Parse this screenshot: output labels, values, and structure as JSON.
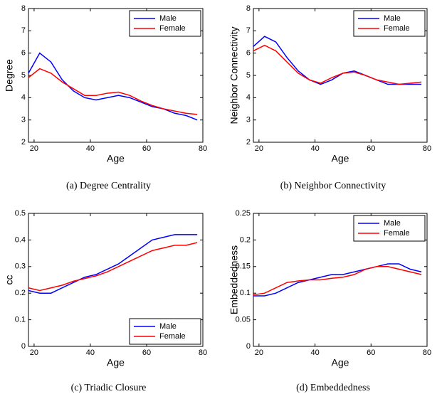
{
  "chart_data": [
    {
      "type": "line",
      "ylabel": "Degree",
      "xlabel": "Age",
      "caption": "(a)  Degree Centrality",
      "legend": "northeast",
      "x": [
        18,
        22,
        26,
        30,
        34,
        38,
        42,
        46,
        50,
        54,
        58,
        62,
        66,
        70,
        74,
        78
      ],
      "xlim": [
        18,
        80
      ],
      "xticks": [
        20,
        40,
        60,
        80
      ],
      "ylim": [
        2,
        8
      ],
      "yticks": [
        2,
        3,
        4,
        5,
        6,
        7,
        8
      ],
      "series": [
        {
          "name": "Male",
          "color": "#0000ff",
          "values": [
            5.1,
            6.0,
            5.6,
            4.8,
            4.3,
            4.0,
            3.9,
            4.0,
            4.1,
            4.0,
            3.8,
            3.6,
            3.5,
            3.3,
            3.2,
            3.0
          ]
        },
        {
          "name": "Female",
          "color": "#ff0000",
          "values": [
            4.9,
            5.3,
            5.1,
            4.7,
            4.4,
            4.1,
            4.1,
            4.2,
            4.25,
            4.1,
            3.85,
            3.65,
            3.5,
            3.4,
            3.3,
            3.25
          ]
        }
      ]
    },
    {
      "type": "line",
      "ylabel": "Neighbor Connectivity",
      "xlabel": "Age",
      "caption": "(b)  Neighbor Connectivity",
      "legend": "northeast",
      "x": [
        18,
        22,
        26,
        30,
        34,
        38,
        42,
        46,
        50,
        54,
        58,
        62,
        66,
        70,
        74,
        78
      ],
      "xlim": [
        18,
        80
      ],
      "xticks": [
        20,
        40,
        60,
        80
      ],
      "ylim": [
        2,
        8
      ],
      "yticks": [
        2,
        3,
        4,
        5,
        6,
        7,
        8
      ],
      "series": [
        {
          "name": "Male",
          "color": "#0000ff",
          "values": [
            6.3,
            6.75,
            6.5,
            5.8,
            5.2,
            4.8,
            4.6,
            4.8,
            5.1,
            5.2,
            5.0,
            4.8,
            4.6,
            4.6,
            4.6,
            4.6
          ]
        },
        {
          "name": "Female",
          "color": "#ff0000",
          "values": [
            6.1,
            6.35,
            6.1,
            5.6,
            5.1,
            4.8,
            4.65,
            4.9,
            5.1,
            5.15,
            5.0,
            4.8,
            4.7,
            4.6,
            4.65,
            4.7
          ]
        }
      ]
    },
    {
      "type": "line",
      "ylabel": "cc",
      "xlabel": "Age",
      "caption": "(c)  Triadic Closure",
      "legend": "southeast",
      "x": [
        18,
        22,
        26,
        30,
        34,
        38,
        42,
        46,
        50,
        54,
        58,
        62,
        66,
        70,
        74,
        78
      ],
      "xlim": [
        18,
        80
      ],
      "xticks": [
        20,
        40,
        60,
        80
      ],
      "ylim": [
        0,
        0.5
      ],
      "yticks": [
        0,
        0.1,
        0.2,
        0.3,
        0.4,
        0.5
      ],
      "series": [
        {
          "name": "Male",
          "color": "#0000ff",
          "values": [
            0.21,
            0.2,
            0.2,
            0.22,
            0.24,
            0.26,
            0.27,
            0.29,
            0.31,
            0.34,
            0.37,
            0.4,
            0.41,
            0.42,
            0.42,
            0.42
          ]
        },
        {
          "name": "Female",
          "color": "#ff0000",
          "values": [
            0.22,
            0.21,
            0.22,
            0.23,
            0.245,
            0.255,
            0.265,
            0.28,
            0.3,
            0.32,
            0.34,
            0.36,
            0.37,
            0.38,
            0.38,
            0.39
          ]
        }
      ]
    },
    {
      "type": "line",
      "ylabel": "Embeddedness",
      "xlabel": "Age",
      "caption": "(d)  Embeddedness",
      "legend": "northeast",
      "x": [
        18,
        22,
        26,
        30,
        34,
        38,
        42,
        46,
        50,
        54,
        58,
        62,
        66,
        70,
        74,
        78
      ],
      "xlim": [
        18,
        80
      ],
      "xticks": [
        20,
        40,
        60,
        80
      ],
      "ylim": [
        0,
        0.25
      ],
      "yticks": [
        0,
        0.05,
        0.1,
        0.15,
        0.2,
        0.25
      ],
      "series": [
        {
          "name": "Male",
          "color": "#0000ff",
          "values": [
            0.095,
            0.095,
            0.1,
            0.11,
            0.12,
            0.125,
            0.13,
            0.135,
            0.135,
            0.14,
            0.145,
            0.15,
            0.155,
            0.155,
            0.145,
            0.14
          ]
        },
        {
          "name": "Female",
          "color": "#ff0000",
          "values": [
            0.097,
            0.1,
            0.11,
            0.12,
            0.123,
            0.125,
            0.125,
            0.128,
            0.13,
            0.135,
            0.145,
            0.15,
            0.15,
            0.145,
            0.14,
            0.135
          ]
        }
      ]
    }
  ]
}
